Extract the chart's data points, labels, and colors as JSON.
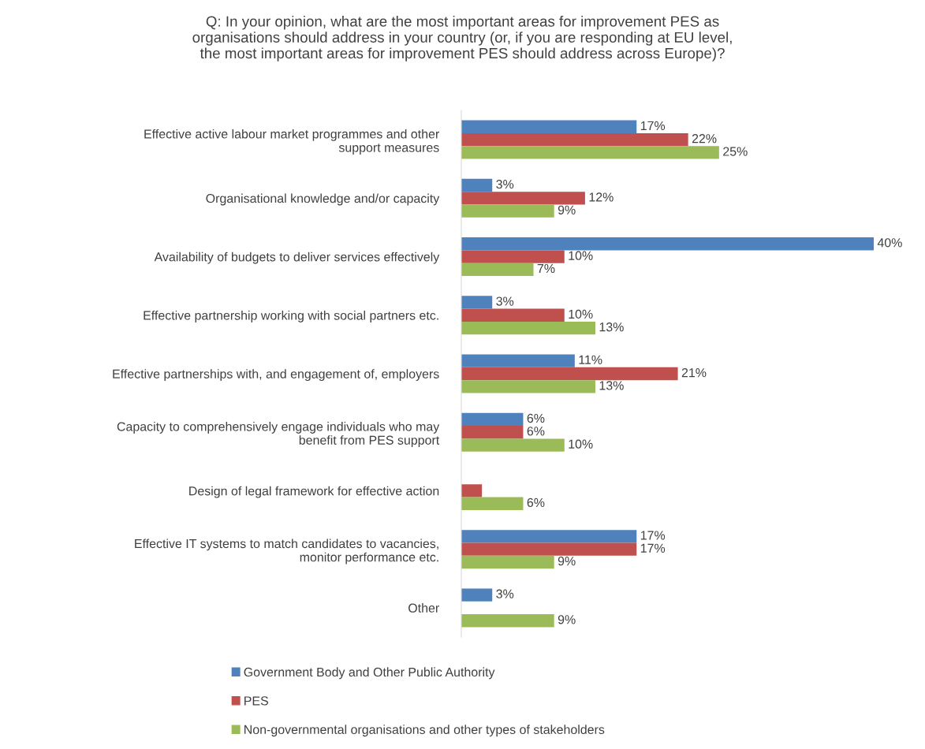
{
  "chart_data": {
    "type": "bar",
    "orientation": "horizontal",
    "title": "Q: In your opinion, what are the most important areas for improvement PES as\norganisations should address in your country (or, if you are responding at EU level,\nthe most important areas for improvement PES should address across Europe)?",
    "categories": [
      "Effective active labour market programmes and other\nsupport measures",
      "Organisational knowledge and/or capacity",
      "Availability of budgets to deliver services effectively",
      "Effective partnership working with social partners etc.",
      "Effective partnerships with, and engagement of, employers",
      "Capacity to comprehensively engage individuals who may\nbenefit from PES support",
      "Design of legal framework for effective action",
      "Effective IT systems to match candidates to vacancies,\nmonitor performance etc.",
      "Other"
    ],
    "series": [
      {
        "name": "Government Body and Other Public Authority",
        "color": "#4f81bd",
        "values": [
          17,
          3,
          40,
          3,
          11,
          6,
          null,
          17,
          3
        ],
        "value_labels": [
          "17%",
          "3%",
          "40%",
          "3%",
          "11%",
          "6%",
          null,
          "17%",
          "3%"
        ]
      },
      {
        "name": "PES",
        "color": "#c0504d",
        "values": [
          22,
          12,
          10,
          10,
          21,
          6,
          2,
          17,
          null
        ],
        "value_labels": [
          "22%",
          "12%",
          "10%",
          "10%",
          "21%",
          "6%",
          null,
          "17%",
          null
        ]
      },
      {
        "name": "Non-governmental organisations and other types of stakeholders",
        "color": "#9bbb59",
        "values": [
          25,
          9,
          7,
          13,
          13,
          10,
          6,
          9,
          9
        ],
        "value_labels": [
          "25%",
          "9%",
          "7%",
          "13%",
          "13%",
          "10%",
          "6%",
          "9%",
          "9%"
        ]
      }
    ],
    "legend": "bottom",
    "grid": false
  }
}
